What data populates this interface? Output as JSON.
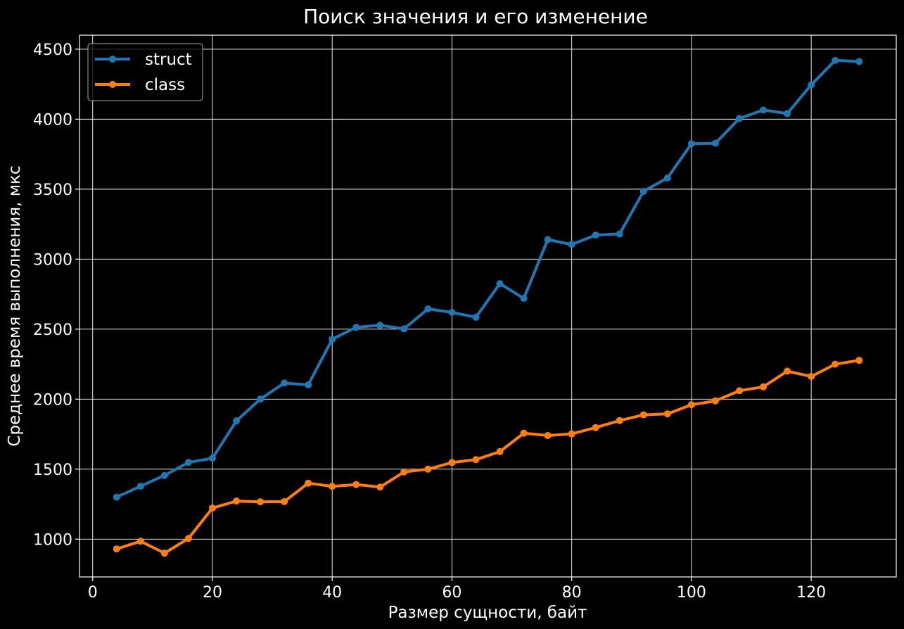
{
  "chart_data": {
    "type": "line",
    "title": "Поиск значения и его изменение",
    "xlabel": "Размер сущности, байт",
    "ylabel": "Среднее время выполнения, мкс",
    "xlim": [
      -2.2,
      134.2
    ],
    "ylim": [
      730,
      4600
    ],
    "xticks": [
      0,
      20,
      40,
      60,
      80,
      100,
      120
    ],
    "yticks": [
      1000,
      1500,
      2000,
      2500,
      3000,
      3500,
      4000,
      4500
    ],
    "grid": true,
    "legend_position": "top-left",
    "x": [
      4,
      8,
      12,
      16,
      20,
      24,
      28,
      32,
      36,
      40,
      44,
      48,
      52,
      56,
      60,
      64,
      68,
      72,
      76,
      80,
      84,
      88,
      92,
      96,
      100,
      104,
      108,
      112,
      116,
      120,
      124,
      128
    ],
    "series": [
      {
        "name": "struct",
        "color": "#1f77b4",
        "values": [
          1300,
          1378,
          1455,
          1548,
          1578,
          1845,
          2000,
          2115,
          2102,
          2428,
          2513,
          2528,
          2502,
          2645,
          2620,
          2585,
          2825,
          2720,
          3140,
          3105,
          3172,
          3180,
          3485,
          3580,
          3825,
          3828,
          4005,
          4065,
          4040,
          4245,
          4420,
          4412
        ]
      },
      {
        "name": "class",
        "color": "#ff7f0e",
        "values": [
          930,
          985,
          900,
          1005,
          1222,
          1272,
          1267,
          1268,
          1400,
          1377,
          1390,
          1372,
          1480,
          1500,
          1547,
          1568,
          1625,
          1757,
          1740,
          1752,
          1797,
          1847,
          1888,
          1895,
          1960,
          1988,
          2060,
          2088,
          2200,
          2162,
          2250,
          2277
        ]
      }
    ]
  }
}
